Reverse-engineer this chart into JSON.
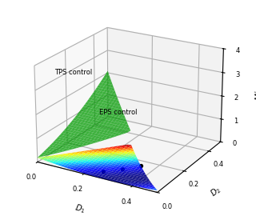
{
  "k": 5,
  "D_range_min": 0.0,
  "D_range_max": 0.5,
  "elev": 22,
  "azim": -60,
  "figsize": [
    3.2,
    2.7
  ],
  "dpi": 100,
  "surface_cmap": "jet",
  "alpha_tps": 0.92,
  "alpha_eps": 0.75,
  "annotation_tps": "TPS control",
  "annotation_eps": "EPS control",
  "eps_color": "#00aa00",
  "xticks": [
    0.0,
    0.2,
    0.4
  ],
  "yticks": [
    0.0,
    0.2,
    0.4
  ],
  "zticks": [
    0,
    1,
    2,
    3,
    4
  ],
  "xlim": [
    0,
    0.5
  ],
  "ylim": [
    0,
    0.5
  ],
  "zlim": [
    0,
    4
  ]
}
